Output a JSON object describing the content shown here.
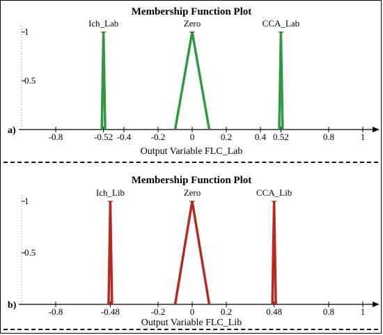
{
  "chart_data": [
    {
      "type": "line",
      "panel_label": "a)",
      "title": "Membership Function Plot",
      "xlabel": "Output Variable FLC_Lab",
      "xlim": [
        -1,
        1
      ],
      "ylim": [
        0,
        1
      ],
      "x_ticks": [
        "-0.8",
        "-0.52",
        "-0.4",
        "-0.2",
        "0",
        "0.2",
        "0.4",
        "0.52",
        "0.8",
        "1"
      ],
      "x_tick_values": [
        -0.8,
        -0.52,
        -0.4,
        -0.2,
        0,
        0.2,
        0.4,
        0.52,
        0.8,
        1
      ],
      "y_ticks": [
        "0.5",
        "1"
      ],
      "y_tick_values": [
        0.5,
        1
      ],
      "line_color": "#2e9a3e",
      "series": [
        {
          "name": "Ich_Lab",
          "x": [
            -0.53,
            -0.52,
            -0.51
          ],
          "y": [
            0,
            1,
            0
          ]
        },
        {
          "name": "Zero",
          "x": [
            -0.1,
            0,
            0.1
          ],
          "y": [
            0,
            1,
            0
          ]
        },
        {
          "name": "CCA_Lab",
          "x": [
            0.51,
            0.52,
            0.53
          ],
          "y": [
            0,
            1,
            0
          ]
        }
      ]
    },
    {
      "type": "line",
      "panel_label": "b)",
      "title": "Membership Function Plot",
      "xlabel": "Output Variable FLC_Lib",
      "xlim": [
        -1,
        1
      ],
      "ylim": [
        0,
        1
      ],
      "x_ticks": [
        "-0.8",
        "-0.48",
        "-0.2",
        "0",
        "0.2",
        "0.48",
        "0.8",
        "1"
      ],
      "x_tick_values": [
        -0.8,
        -0.48,
        -0.2,
        0,
        0.2,
        0.48,
        0.8,
        1
      ],
      "y_ticks": [
        "0.5",
        "1"
      ],
      "y_tick_values": [
        0.5,
        1
      ],
      "line_color": "#b8281e",
      "series": [
        {
          "name": "Ich_Lib",
          "x": [
            -0.49,
            -0.48,
            -0.47
          ],
          "y": [
            0,
            1,
            0
          ]
        },
        {
          "name": "Zero",
          "x": [
            -0.1,
            0,
            0.1
          ],
          "y": [
            0,
            1,
            0
          ]
        },
        {
          "name": "CCA_Lib",
          "x": [
            0.47,
            0.48,
            0.49
          ],
          "y": [
            0,
            1,
            0
          ]
        }
      ]
    }
  ]
}
